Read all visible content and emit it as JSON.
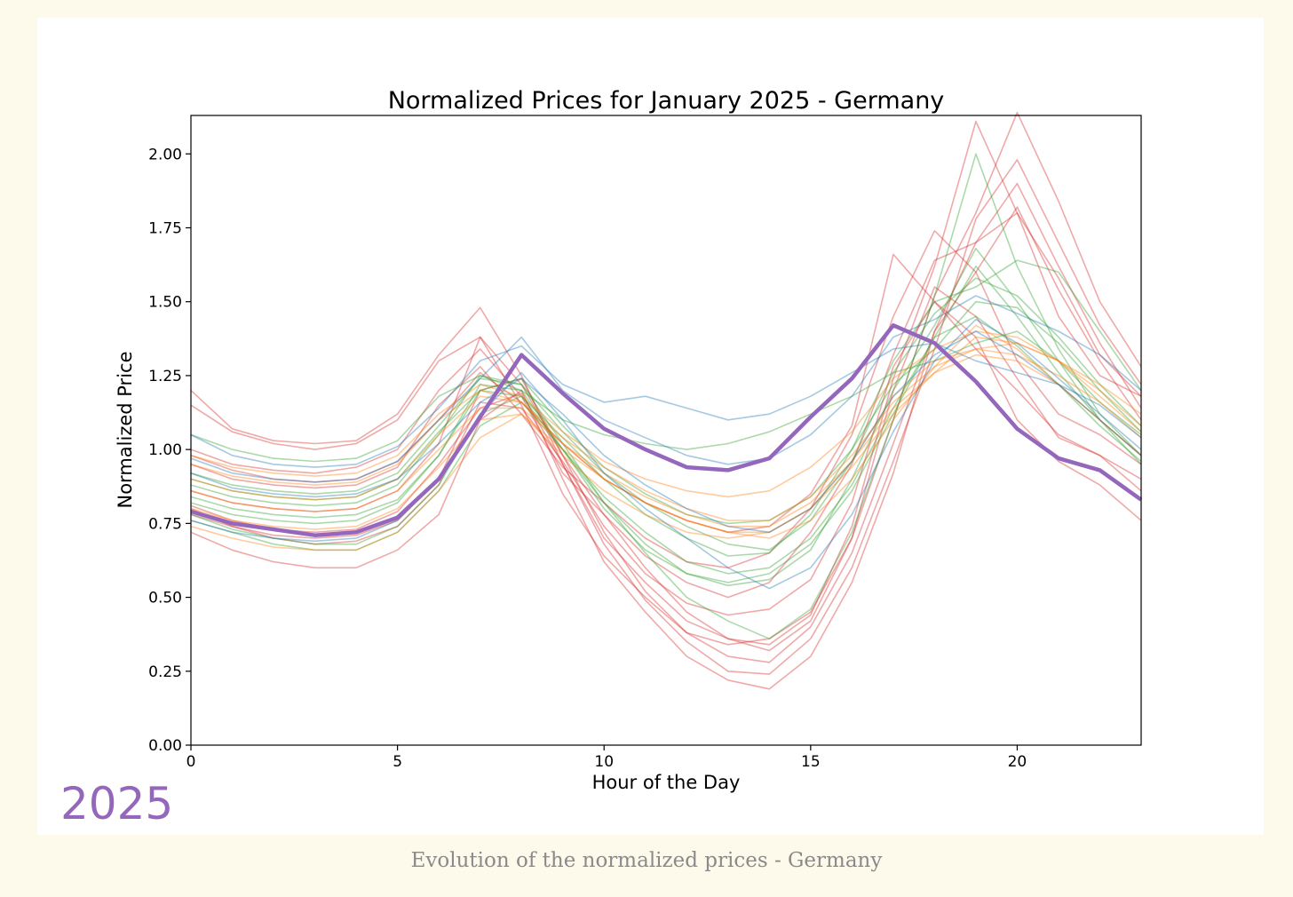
{
  "caption": "Evolution of the normalized prices - Germany",
  "year_label": "2025",
  "colors": {
    "highlight": "#9467bd",
    "series_palette": [
      "#d62728",
      "#2ca02c",
      "#ff7f0e",
      "#1f77b4"
    ]
  },
  "chart_data": {
    "type": "line",
    "title": "Normalized Prices for January 2025 - Germany",
    "xlabel": "Hour of the Day",
    "ylabel": "Normalized Price",
    "xlim": [
      0,
      23
    ],
    "ylim": [
      0,
      2.13
    ],
    "xticks": [
      0,
      5,
      10,
      15,
      20
    ],
    "xtick_labels": [
      "0",
      "5",
      "10",
      "15",
      "20"
    ],
    "yticks": [
      0,
      0.25,
      0.5,
      0.75,
      1.0,
      1.25,
      1.5,
      1.75,
      2.0
    ],
    "ytick_labels": [
      "0.00",
      "0.25",
      "0.50",
      "0.75",
      "1.00",
      "1.25",
      "1.50",
      "1.75",
      "2.00"
    ],
    "grid": false,
    "x": [
      0,
      1,
      2,
      3,
      4,
      5,
      6,
      7,
      8,
      9,
      10,
      11,
      12,
      13,
      14,
      15,
      16,
      17,
      18,
      19,
      20,
      21,
      22,
      23
    ],
    "highlight_series": {
      "values": [
        0.79,
        0.75,
        0.73,
        0.71,
        0.72,
        0.77,
        0.9,
        1.11,
        1.32,
        1.19,
        1.07,
        1.0,
        0.94,
        0.93,
        0.97,
        1.11,
        1.24,
        1.42,
        1.36,
        1.23,
        1.07,
        0.97,
        0.93,
        0.83
      ]
    },
    "series": [
      {
        "color": "#d62728",
        "values": [
          0.81,
          0.76,
          0.73,
          0.72,
          0.73,
          0.79,
          0.95,
          1.14,
          1.19,
          0.95,
          0.68,
          0.49,
          0.35,
          0.25,
          0.24,
          0.36,
          0.6,
          0.96,
          1.34,
          1.78,
          1.98,
          1.7,
          1.42,
          1.22
        ]
      },
      {
        "color": "#d62728",
        "values": [
          0.78,
          0.74,
          0.71,
          0.7,
          0.71,
          0.76,
          0.9,
          1.2,
          1.24,
          0.98,
          0.72,
          0.52,
          0.38,
          0.3,
          0.28,
          0.4,
          0.65,
          1.02,
          1.4,
          1.7,
          1.9,
          1.62,
          1.36,
          1.14
        ]
      },
      {
        "color": "#d62728",
        "values": [
          0.72,
          0.66,
          0.62,
          0.6,
          0.6,
          0.66,
          0.78,
          1.1,
          1.2,
          0.9,
          0.62,
          0.45,
          0.3,
          0.22,
          0.19,
          0.3,
          0.55,
          0.92,
          1.4,
          1.6,
          1.82,
          1.54,
          1.3,
          1.1
        ]
      },
      {
        "color": "#d62728",
        "values": [
          1.15,
          1.06,
          1.02,
          1.0,
          1.02,
          1.1,
          1.3,
          1.38,
          1.15,
          0.85,
          0.64,
          0.5,
          0.38,
          0.34,
          0.36,
          0.45,
          0.7,
          1.1,
          1.52,
          1.8,
          2.14,
          1.84,
          1.5,
          1.28
        ]
      },
      {
        "color": "#d62728",
        "values": [
          1.2,
          1.07,
          1.03,
          1.02,
          1.03,
          1.12,
          1.32,
          1.48,
          1.25,
          0.95,
          0.7,
          0.55,
          0.42,
          0.36,
          0.34,
          0.44,
          0.74,
          1.24,
          1.62,
          2.11,
          1.8,
          1.45,
          1.25,
          1.18
        ]
      },
      {
        "color": "#d62728",
        "values": [
          1.0,
          0.95,
          0.93,
          0.92,
          0.94,
          1.0,
          1.2,
          1.34,
          1.18,
          0.92,
          0.78,
          0.64,
          0.55,
          0.5,
          0.55,
          0.72,
          0.95,
          1.32,
          1.64,
          1.7,
          1.8,
          1.58,
          1.32,
          1.18
        ]
      },
      {
        "color": "#d62728",
        "values": [
          0.95,
          0.9,
          0.88,
          0.87,
          0.88,
          0.94,
          1.15,
          1.28,
          1.12,
          0.94,
          0.82,
          0.7,
          0.62,
          0.6,
          0.65,
          0.8,
          1.05,
          1.45,
          1.74,
          1.6,
          1.3,
          1.12,
          1.05,
          0.95
        ]
      },
      {
        "color": "#d62728",
        "values": [
          0.86,
          0.82,
          0.8,
          0.79,
          0.8,
          0.86,
          1.02,
          1.38,
          1.22,
          0.98,
          0.78,
          0.6,
          0.45,
          0.36,
          0.32,
          0.42,
          0.7,
          1.2,
          1.55,
          1.45,
          1.24,
          1.04,
          0.98,
          0.86
        ]
      },
      {
        "color": "#d62728",
        "values": [
          0.8,
          0.74,
          0.7,
          0.68,
          0.69,
          0.74,
          0.88,
          1.16,
          1.14,
          0.96,
          0.74,
          0.58,
          0.48,
          0.44,
          0.46,
          0.56,
          0.82,
          1.28,
          1.5,
          1.38,
          1.1,
          0.96,
          0.88,
          0.76
        ]
      },
      {
        "color": "#d62728",
        "values": [
          0.98,
          0.93,
          0.9,
          0.89,
          0.9,
          0.96,
          1.1,
          1.26,
          1.16,
          1.02,
          0.9,
          0.82,
          0.76,
          0.72,
          0.74,
          0.85,
          1.08,
          1.66,
          1.5,
          1.34,
          1.2,
          1.05,
          0.98,
          0.9
        ]
      },
      {
        "color": "#2ca02c",
        "values": [
          0.88,
          0.84,
          0.82,
          0.81,
          0.82,
          0.88,
          1.05,
          1.25,
          1.22,
          1.02,
          0.82,
          0.65,
          0.5,
          0.42,
          0.36,
          0.46,
          0.72,
          1.1,
          1.52,
          2.0,
          1.62,
          1.34,
          1.12,
          0.98
        ]
      },
      {
        "color": "#2ca02c",
        "values": [
          0.84,
          0.8,
          0.78,
          0.77,
          0.78,
          0.83,
          0.98,
          1.22,
          1.2,
          1.0,
          0.82,
          0.68,
          0.58,
          0.54,
          0.56,
          0.66,
          0.9,
          1.2,
          1.42,
          1.68,
          1.5,
          1.3,
          1.1,
          0.95
        ]
      },
      {
        "color": "#2ca02c",
        "values": [
          0.9,
          0.86,
          0.84,
          0.83,
          0.84,
          0.9,
          1.06,
          1.2,
          1.18,
          1.04,
          0.9,
          0.78,
          0.7,
          0.64,
          0.65,
          0.78,
          1.0,
          1.3,
          1.5,
          1.55,
          1.64,
          1.6,
          1.4,
          1.2
        ]
      },
      {
        "color": "#2ca02c",
        "values": [
          0.76,
          0.72,
          0.68,
          0.66,
          0.66,
          0.72,
          0.86,
          1.08,
          1.16,
          1.0,
          0.84,
          0.72,
          0.62,
          0.58,
          0.6,
          0.7,
          0.88,
          1.14,
          1.38,
          1.62,
          1.45,
          1.26,
          1.1,
          0.98
        ]
      },
      {
        "color": "#2ca02c",
        "values": [
          1.05,
          1.0,
          0.97,
          0.96,
          0.97,
          1.03,
          1.18,
          1.25,
          1.2,
          1.1,
          1.05,
          1.02,
          1.0,
          1.02,
          1.06,
          1.12,
          1.18,
          1.26,
          1.3,
          1.36,
          1.4,
          1.3,
          1.16,
          1.05
        ]
      },
      {
        "color": "#2ca02c",
        "values": [
          0.82,
          0.78,
          0.76,
          0.75,
          0.76,
          0.82,
          0.98,
          1.2,
          1.24,
          1.08,
          0.94,
          0.85,
          0.78,
          0.75,
          0.76,
          0.84,
          1.0,
          1.22,
          1.34,
          1.5,
          1.48,
          1.36,
          1.2,
          1.06
        ]
      },
      {
        "color": "#2ca02c",
        "values": [
          0.78,
          0.73,
          0.7,
          0.68,
          0.68,
          0.74,
          0.88,
          1.12,
          1.18,
          1.0,
          0.8,
          0.66,
          0.58,
          0.55,
          0.58,
          0.68,
          0.86,
          1.12,
          1.38,
          1.45,
          1.35,
          1.22,
          1.08,
          0.96
        ]
      },
      {
        "color": "#2ca02c",
        "values": [
          0.92,
          0.88,
          0.86,
          0.85,
          0.86,
          0.92,
          1.08,
          1.24,
          1.22,
          1.06,
          0.92,
          0.82,
          0.74,
          0.68,
          0.66,
          0.76,
          0.96,
          1.26,
          1.46,
          1.58,
          1.52,
          1.38,
          1.22,
          1.08
        ]
      },
      {
        "color": "#ff7f0e",
        "values": [
          0.9,
          0.86,
          0.84,
          0.83,
          0.84,
          0.9,
          1.05,
          1.18,
          1.16,
          1.02,
          0.9,
          0.82,
          0.76,
          0.72,
          0.72,
          0.8,
          0.96,
          1.18,
          1.3,
          1.34,
          1.36,
          1.3,
          1.2,
          1.08
        ]
      },
      {
        "color": "#ff7f0e",
        "values": [
          0.95,
          0.91,
          0.89,
          0.88,
          0.89,
          0.95,
          1.1,
          1.2,
          1.16,
          1.04,
          0.94,
          0.86,
          0.8,
          0.76,
          0.76,
          0.84,
          0.98,
          1.16,
          1.28,
          1.34,
          1.32,
          1.25,
          1.16,
          1.04
        ]
      },
      {
        "color": "#ff7f0e",
        "values": [
          0.74,
          0.7,
          0.67,
          0.66,
          0.66,
          0.72,
          0.86,
          1.04,
          1.12,
          0.98,
          0.86,
          0.78,
          0.72,
          0.7,
          0.72,
          0.8,
          0.94,
          1.12,
          1.26,
          1.32,
          1.3,
          1.22,
          1.1,
          0.98
        ]
      },
      {
        "color": "#ff7f0e",
        "values": [
          0.86,
          0.82,
          0.8,
          0.79,
          0.8,
          0.86,
          1.0,
          1.14,
          1.14,
          1.02,
          0.92,
          0.84,
          0.78,
          0.74,
          0.74,
          0.82,
          0.96,
          1.14,
          1.26,
          1.38,
          1.36,
          1.3,
          1.18,
          1.06
        ]
      },
      {
        "color": "#ff7f0e",
        "values": [
          0.98,
          0.94,
          0.92,
          0.91,
          0.92,
          0.98,
          1.12,
          1.22,
          1.18,
          1.06,
          0.96,
          0.9,
          0.86,
          0.84,
          0.86,
          0.94,
          1.06,
          1.24,
          1.34,
          1.4,
          1.38,
          1.3,
          1.22,
          1.12
        ]
      },
      {
        "color": "#ff7f0e",
        "values": [
          0.8,
          0.76,
          0.74,
          0.73,
          0.74,
          0.8,
          0.94,
          1.1,
          1.12,
          1.0,
          0.9,
          0.82,
          0.76,
          0.72,
          0.7,
          0.76,
          0.9,
          1.1,
          1.28,
          1.42,
          1.34,
          1.22,
          1.1,
          0.98
        ]
      },
      {
        "color": "#1f77b4",
        "values": [
          0.97,
          0.92,
          0.9,
          0.89,
          0.9,
          0.96,
          1.1,
          1.24,
          1.38,
          1.2,
          1.1,
          1.04,
          0.98,
          0.95,
          0.97,
          1.05,
          1.18,
          1.38,
          1.44,
          1.52,
          1.46,
          1.4,
          1.32,
          1.2
        ]
      },
      {
        "color": "#1f77b4",
        "values": [
          1.05,
          0.98,
          0.95,
          0.94,
          0.95,
          1.01,
          1.14,
          1.3,
          1.35,
          1.22,
          1.16,
          1.18,
          1.14,
          1.1,
          1.12,
          1.18,
          1.26,
          1.34,
          1.36,
          1.3,
          1.26,
          1.22,
          1.15,
          1.04
        ]
      },
      {
        "color": "#1f77b4",
        "values": [
          0.92,
          0.87,
          0.85,
          0.84,
          0.85,
          0.9,
          1.02,
          1.16,
          1.24,
          1.12,
          0.98,
          0.88,
          0.8,
          0.74,
          0.72,
          0.8,
          0.96,
          1.18,
          1.32,
          1.4,
          1.32,
          1.22,
          1.1,
          0.98
        ]
      },
      {
        "color": "#1f77b4",
        "values": [
          0.76,
          0.72,
          0.7,
          0.69,
          0.7,
          0.76,
          0.9,
          1.12,
          1.26,
          1.1,
          0.92,
          0.8,
          0.7,
          0.6,
          0.53,
          0.6,
          0.78,
          1.06,
          1.3,
          1.44,
          1.36,
          1.24,
          1.12,
          1.0
        ]
      }
    ]
  }
}
